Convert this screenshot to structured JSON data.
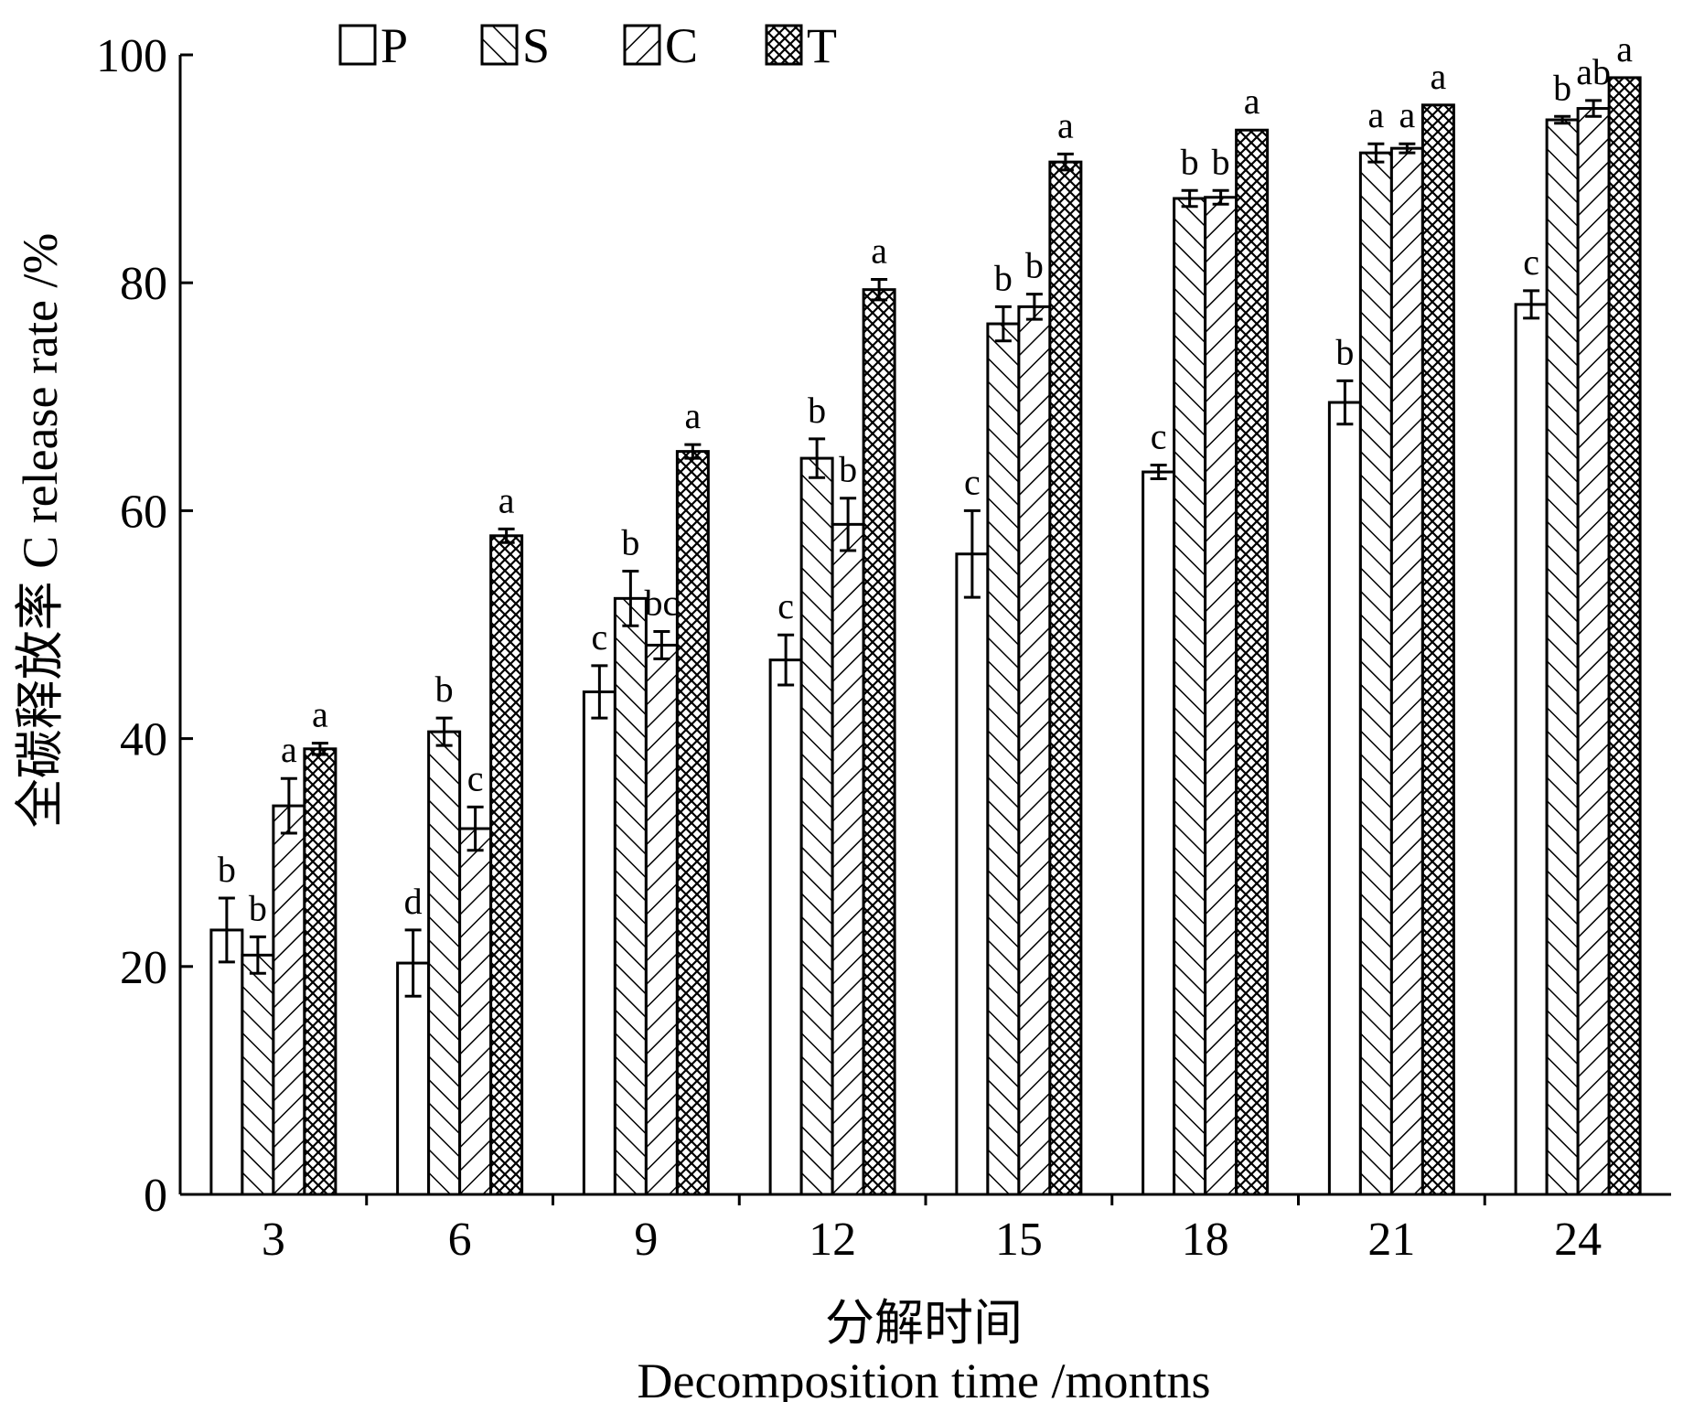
{
  "chart_data": {
    "type": "bar",
    "categories": [
      "3",
      "6",
      "9",
      "12",
      "15",
      "18",
      "21",
      "24"
    ],
    "ylim": [
      0,
      100
    ],
    "yticks": [
      0,
      20,
      40,
      60,
      80,
      100
    ],
    "ytick_labels": [
      "0",
      "20",
      "40",
      "60",
      "80",
      "100"
    ],
    "ylabel": "全碳释放率 C release rate /%",
    "xlabel": "分解时间",
    "xlabel_en": "Decomposition time /montns",
    "legend_position": "top-left",
    "grid": false,
    "series": [
      {
        "name": "P",
        "pattern": "none",
        "values": [
          23.2,
          20.3,
          44.1,
          46.9,
          56.2,
          63.4,
          69.5,
          78.1
        ],
        "errors": [
          2.8,
          2.9,
          2.3,
          2.2,
          3.8,
          0.6,
          1.9,
          1.2
        ],
        "letters": [
          "b",
          "d",
          "c",
          "c",
          "c",
          "c",
          "b",
          "c"
        ]
      },
      {
        "name": "S",
        "pattern": "diagonal-right",
        "values": [
          21.0,
          40.6,
          52.3,
          64.6,
          76.4,
          87.4,
          91.4,
          94.3
        ],
        "errors": [
          1.6,
          1.2,
          2.4,
          1.7,
          1.5,
          0.7,
          0.8,
          0.3
        ],
        "letters": [
          "b",
          "b",
          "b",
          "b",
          "b",
          "b",
          "a",
          "b"
        ]
      },
      {
        "name": "C",
        "pattern": "diagonal-left",
        "values": [
          34.1,
          32.1,
          48.2,
          58.8,
          77.9,
          87.5,
          91.8,
          95.3
        ],
        "errors": [
          2.4,
          1.9,
          1.2,
          2.3,
          1.1,
          0.6,
          0.4,
          0.7
        ],
        "letters": [
          "a",
          "c",
          "bc",
          "b",
          "b",
          "b",
          "a",
          "ab"
        ]
      },
      {
        "name": "T",
        "pattern": "crosshatch",
        "values": [
          39.1,
          57.8,
          65.2,
          79.4,
          90.6,
          93.4,
          95.6,
          98.0
        ],
        "errors": [
          0.5,
          0.6,
          0.6,
          0.9,
          0.7,
          0.0,
          0.0,
          0.0
        ],
        "letters": [
          "a",
          "a",
          "a",
          "a",
          "a",
          "a",
          "a",
          "a"
        ]
      }
    ]
  }
}
